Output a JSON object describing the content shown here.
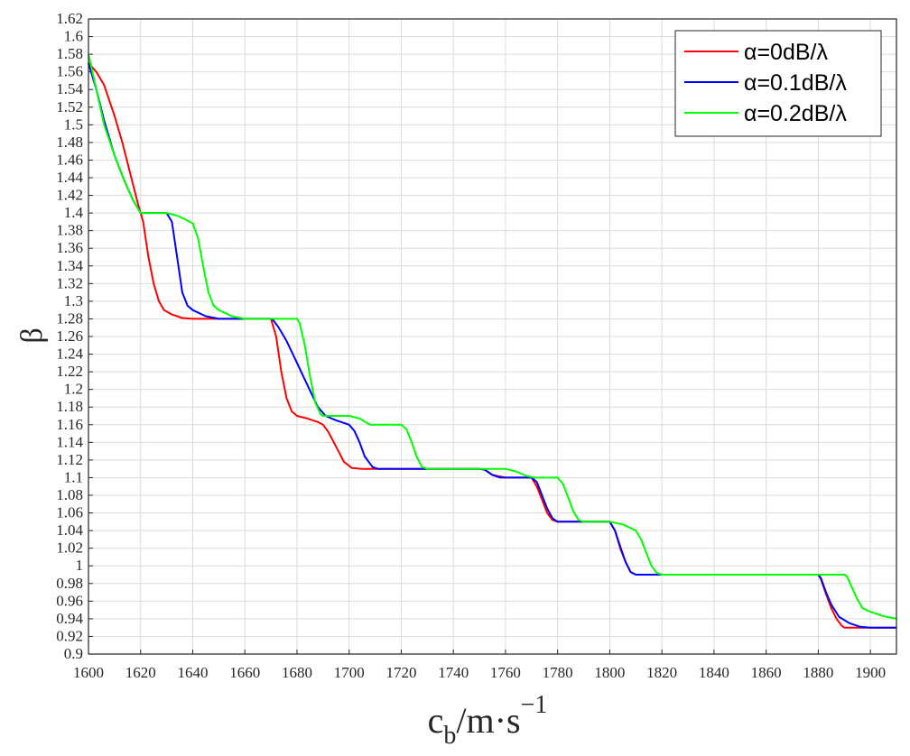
{
  "chart_data": {
    "type": "line",
    "title": "",
    "xlabel": "c_b/m·s^-1",
    "xlabel_parts": {
      "base": "c",
      "sub": "b",
      "mid": "/m·s",
      "sup": "−1"
    },
    "ylabel": "β",
    "xlim": [
      1600,
      1910
    ],
    "ylim": [
      0.9,
      1.62
    ],
    "xticks": [
      1600,
      1620,
      1640,
      1660,
      1680,
      1700,
      1720,
      1740,
      1760,
      1780,
      1800,
      1820,
      1840,
      1860,
      1880,
      1900
    ],
    "yticks": [
      0.9,
      0.92,
      0.94,
      0.96,
      0.98,
      1,
      1.02,
      1.04,
      1.06,
      1.08,
      1.1,
      1.12,
      1.14,
      1.16,
      1.18,
      1.2,
      1.22,
      1.24,
      1.26,
      1.28,
      1.3,
      1.32,
      1.34,
      1.36,
      1.38,
      1.4,
      1.42,
      1.44,
      1.46,
      1.48,
      1.5,
      1.52,
      1.54,
      1.56,
      1.58,
      1.6,
      1.62
    ],
    "grid": true,
    "legend_position": "top-right",
    "series": [
      {
        "name": "α=0dB/λ",
        "color": "#ff0000",
        "points": [
          [
            1600,
            1.57
          ],
          [
            1603,
            1.56
          ],
          [
            1606,
            1.545
          ],
          [
            1610,
            1.51
          ],
          [
            1613,
            1.48
          ],
          [
            1616,
            1.445
          ],
          [
            1619,
            1.41
          ],
          [
            1621,
            1.39
          ],
          [
            1623,
            1.35
          ],
          [
            1625,
            1.32
          ],
          [
            1627,
            1.3
          ],
          [
            1629,
            1.29
          ],
          [
            1632,
            1.285
          ],
          [
            1636,
            1.281
          ],
          [
            1640,
            1.28
          ],
          [
            1660,
            1.28
          ],
          [
            1670,
            1.28
          ],
          [
            1672,
            1.26
          ],
          [
            1674,
            1.22
          ],
          [
            1676,
            1.19
          ],
          [
            1678,
            1.175
          ],
          [
            1680,
            1.17
          ],
          [
            1684,
            1.167
          ],
          [
            1688,
            1.163
          ],
          [
            1690,
            1.16
          ],
          [
            1692,
            1.152
          ],
          [
            1695,
            1.135
          ],
          [
            1698,
            1.118
          ],
          [
            1701,
            1.111
          ],
          [
            1705,
            1.11
          ],
          [
            1730,
            1.11
          ],
          [
            1750,
            1.11
          ],
          [
            1752,
            1.109
          ],
          [
            1755,
            1.103
          ],
          [
            1760,
            1.1
          ],
          [
            1770,
            1.1
          ],
          [
            1772,
            1.09
          ],
          [
            1774,
            1.075
          ],
          [
            1776,
            1.06
          ],
          [
            1778,
            1.052
          ],
          [
            1780,
            1.05
          ],
          [
            1800,
            1.05
          ],
          [
            1802,
            1.04
          ],
          [
            1804,
            1.02
          ],
          [
            1806,
            1.005
          ],
          [
            1808,
            0.993
          ],
          [
            1810,
            0.99
          ],
          [
            1880,
            0.99
          ],
          [
            1881,
            0.985
          ],
          [
            1883,
            0.968
          ],
          [
            1885,
            0.952
          ],
          [
            1887,
            0.94
          ],
          [
            1889,
            0.932
          ],
          [
            1890,
            0.93
          ],
          [
            1910,
            0.93
          ]
        ]
      },
      {
        "name": "α=0.1dB/λ",
        "color": "#0000ff",
        "points": [
          [
            1600,
            1.57
          ],
          [
            1603,
            1.54
          ],
          [
            1606,
            1.505
          ],
          [
            1610,
            1.465
          ],
          [
            1614,
            1.435
          ],
          [
            1617,
            1.415
          ],
          [
            1620,
            1.4
          ],
          [
            1630,
            1.4
          ],
          [
            1632,
            1.39
          ],
          [
            1634,
            1.35
          ],
          [
            1636,
            1.31
          ],
          [
            1638,
            1.295
          ],
          [
            1640,
            1.29
          ],
          [
            1645,
            1.283
          ],
          [
            1650,
            1.28
          ],
          [
            1670,
            1.28
          ],
          [
            1671,
            1.278
          ],
          [
            1673,
            1.27
          ],
          [
            1676,
            1.255
          ],
          [
            1680,
            1.23
          ],
          [
            1684,
            1.205
          ],
          [
            1688,
            1.18
          ],
          [
            1691,
            1.17
          ],
          [
            1695,
            1.165
          ],
          [
            1700,
            1.16
          ],
          [
            1702,
            1.153
          ],
          [
            1704,
            1.14
          ],
          [
            1706,
            1.124
          ],
          [
            1709,
            1.112
          ],
          [
            1711,
            1.11
          ],
          [
            1730,
            1.11
          ],
          [
            1750,
            1.11
          ],
          [
            1752,
            1.109
          ],
          [
            1755,
            1.103
          ],
          [
            1758,
            1.1
          ],
          [
            1770,
            1.1
          ],
          [
            1772,
            1.095
          ],
          [
            1774,
            1.08
          ],
          [
            1776,
            1.065
          ],
          [
            1778,
            1.054
          ],
          [
            1780,
            1.05
          ],
          [
            1800,
            1.05
          ],
          [
            1802,
            1.04
          ],
          [
            1804,
            1.022
          ],
          [
            1806,
            1.005
          ],
          [
            1808,
            0.993
          ],
          [
            1810,
            0.99
          ],
          [
            1880,
            0.99
          ],
          [
            1881,
            0.986
          ],
          [
            1883,
            0.97
          ],
          [
            1885,
            0.956
          ],
          [
            1888,
            0.942
          ],
          [
            1892,
            0.935
          ],
          [
            1896,
            0.931
          ],
          [
            1900,
            0.93
          ],
          [
            1910,
            0.93
          ]
        ]
      },
      {
        "name": "α=0.2dB/λ",
        "color": "#00ff00",
        "points": [
          [
            1600,
            1.58
          ],
          [
            1603,
            1.54
          ],
          [
            1606,
            1.5
          ],
          [
            1610,
            1.465
          ],
          [
            1614,
            1.435
          ],
          [
            1617,
            1.415
          ],
          [
            1620,
            1.4
          ],
          [
            1630,
            1.4
          ],
          [
            1634,
            1.397
          ],
          [
            1637,
            1.393
          ],
          [
            1640,
            1.388
          ],
          [
            1642,
            1.372
          ],
          [
            1644,
            1.34
          ],
          [
            1646,
            1.31
          ],
          [
            1648,
            1.295
          ],
          [
            1650,
            1.29
          ],
          [
            1655,
            1.283
          ],
          [
            1660,
            1.28
          ],
          [
            1680,
            1.28
          ],
          [
            1681,
            1.275
          ],
          [
            1683,
            1.25
          ],
          [
            1685,
            1.215
          ],
          [
            1687,
            1.185
          ],
          [
            1689,
            1.172
          ],
          [
            1690,
            1.17
          ],
          [
            1700,
            1.17
          ],
          [
            1704,
            1.167
          ],
          [
            1708,
            1.16
          ],
          [
            1720,
            1.16
          ],
          [
            1722,
            1.155
          ],
          [
            1724,
            1.14
          ],
          [
            1726,
            1.123
          ],
          [
            1728,
            1.112
          ],
          [
            1730,
            1.11
          ],
          [
            1760,
            1.11
          ],
          [
            1764,
            1.107
          ],
          [
            1768,
            1.102
          ],
          [
            1771,
            1.1
          ],
          [
            1780,
            1.1
          ],
          [
            1782,
            1.093
          ],
          [
            1784,
            1.078
          ],
          [
            1786,
            1.062
          ],
          [
            1788,
            1.052
          ],
          [
            1790,
            1.05
          ],
          [
            1800,
            1.05
          ],
          [
            1805,
            1.047
          ],
          [
            1810,
            1.04
          ],
          [
            1812,
            1.03
          ],
          [
            1814,
            1.015
          ],
          [
            1816,
            1.0
          ],
          [
            1818,
            0.992
          ],
          [
            1820,
            0.99
          ],
          [
            1890,
            0.99
          ],
          [
            1891,
            0.988
          ],
          [
            1893,
            0.975
          ],
          [
            1895,
            0.962
          ],
          [
            1897,
            0.952
          ],
          [
            1900,
            0.948
          ],
          [
            1905,
            0.943
          ],
          [
            1910,
            0.94
          ]
        ]
      }
    ]
  }
}
